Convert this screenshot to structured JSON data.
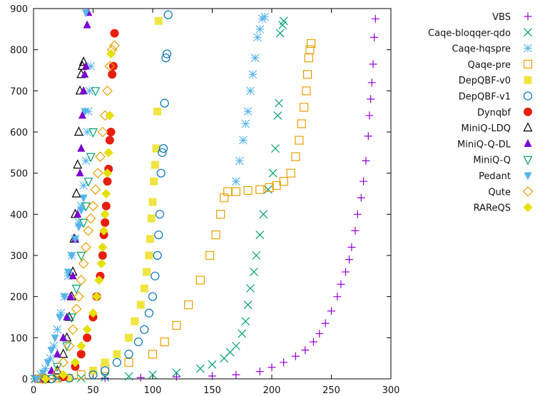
{
  "chart_data": {
    "type": "scatter",
    "title": "",
    "xlabel": "",
    "ylabel": "",
    "xlim": [
      0,
      300
    ],
    "ylim": [
      0,
      900
    ],
    "x_ticks": [
      0,
      50,
      100,
      150,
      200,
      250,
      300
    ],
    "y_ticks": [
      0,
      100,
      200,
      300,
      400,
      500,
      600,
      700,
      800,
      900
    ],
    "grid": false,
    "legend_position": "top-right",
    "series": [
      {
        "name": "VBS",
        "marker": "plus",
        "color": "#9400d3",
        "points": [
          [
            1,
            0
          ],
          [
            30,
            1
          ],
          [
            60,
            2
          ],
          [
            90,
            3
          ],
          [
            120,
            5
          ],
          [
            150,
            7
          ],
          [
            170,
            10
          ],
          [
            190,
            18
          ],
          [
            200,
            28
          ],
          [
            210,
            40
          ],
          [
            220,
            55
          ],
          [
            228,
            70
          ],
          [
            235,
            90
          ],
          [
            240,
            110
          ],
          [
            245,
            135
          ],
          [
            250,
            165
          ],
          [
            255,
            200
          ],
          [
            258,
            230
          ],
          [
            262,
            260
          ],
          [
            265,
            290
          ],
          [
            267,
            320
          ],
          [
            270,
            360
          ],
          [
            272,
            400
          ],
          [
            275,
            440
          ],
          [
            277,
            480
          ],
          [
            279,
            530
          ],
          [
            281,
            590
          ],
          [
            282,
            640
          ],
          [
            283,
            680
          ],
          [
            284,
            720
          ],
          [
            285,
            765
          ],
          [
            286,
            830
          ],
          [
            287,
            875
          ]
        ]
      },
      {
        "name": "Caqe-bloqqer-qdo",
        "marker": "x",
        "color": "#009e73",
        "points": [
          [
            1,
            0
          ],
          [
            20,
            1
          ],
          [
            40,
            2
          ],
          [
            60,
            4
          ],
          [
            80,
            6
          ],
          [
            100,
            10
          ],
          [
            120,
            15
          ],
          [
            140,
            25
          ],
          [
            150,
            35
          ],
          [
            160,
            50
          ],
          [
            165,
            65
          ],
          [
            170,
            80
          ],
          [
            175,
            110
          ],
          [
            178,
            140
          ],
          [
            180,
            180
          ],
          [
            182,
            220
          ],
          [
            185,
            260
          ],
          [
            187,
            300
          ],
          [
            190,
            350
          ],
          [
            193,
            400
          ],
          [
            197,
            460
          ],
          [
            201,
            500
          ],
          [
            203,
            560
          ],
          [
            205,
            640
          ],
          [
            206,
            670
          ],
          [
            207,
            840
          ],
          [
            209,
            860
          ],
          [
            210,
            870
          ]
        ]
      },
      {
        "name": "Caqe-hqspre",
        "marker": "star",
        "color": "#56b4e9",
        "points": [
          [
            2,
            0
          ],
          [
            6,
            10
          ],
          [
            10,
            25
          ],
          [
            14,
            50
          ],
          [
            17,
            80
          ],
          [
            20,
            120
          ],
          [
            23,
            160
          ],
          [
            26,
            200
          ],
          [
            29,
            250
          ],
          [
            32,
            300
          ],
          [
            35,
            340
          ],
          [
            38,
            380
          ],
          [
            40,
            420
          ],
          [
            42,
            470
          ],
          [
            44,
            530
          ],
          [
            45,
            600
          ],
          [
            46,
            650
          ],
          [
            47,
            700
          ],
          [
            48,
            760
          ],
          [
            170,
            480
          ],
          [
            173,
            530
          ],
          [
            176,
            580
          ],
          [
            178,
            620
          ],
          [
            180,
            650
          ],
          [
            182,
            700
          ],
          [
            184,
            740
          ],
          [
            186,
            780
          ],
          [
            188,
            830
          ],
          [
            190,
            850
          ],
          [
            192,
            875
          ],
          [
            194,
            880
          ]
        ]
      },
      {
        "name": "Qaqe-pre",
        "marker": "square-open",
        "color": "#e69f00",
        "points": [
          [
            5,
            0
          ],
          [
            20,
            2
          ],
          [
            40,
            10
          ],
          [
            60,
            25
          ],
          [
            80,
            40
          ],
          [
            100,
            60
          ],
          [
            110,
            90
          ],
          [
            120,
            130
          ],
          [
            130,
            180
          ],
          [
            140,
            240
          ],
          [
            148,
            300
          ],
          [
            153,
            350
          ],
          [
            157,
            400
          ],
          [
            160,
            440
          ],
          [
            163,
            455
          ],
          [
            170,
            455
          ],
          [
            180,
            458
          ],
          [
            190,
            460
          ],
          [
            198,
            465
          ],
          [
            204,
            470
          ],
          [
            210,
            480
          ],
          [
            216,
            500
          ],
          [
            220,
            540
          ],
          [
            223,
            580
          ],
          [
            225,
            620
          ],
          [
            227,
            660
          ],
          [
            229,
            700
          ],
          [
            230,
            740
          ],
          [
            231,
            780
          ],
          [
            232,
            800
          ],
          [
            233,
            815
          ]
        ]
      },
      {
        "name": "DepQBF-v0",
        "marker": "square-filled",
        "color": "#f0e442",
        "points": [
          [
            10,
            0
          ],
          [
            30,
            2
          ],
          [
            50,
            20
          ],
          [
            60,
            40
          ],
          [
            70,
            60
          ],
          [
            80,
            100
          ],
          [
            85,
            140
          ],
          [
            90,
            180
          ],
          [
            93,
            220
          ],
          [
            95,
            260
          ],
          [
            97,
            300
          ],
          [
            98,
            340
          ],
          [
            99,
            390
          ],
          [
            100,
            430
          ],
          [
            101,
            480
          ],
          [
            102,
            520
          ],
          [
            103,
            560
          ],
          [
            104,
            650
          ],
          [
            105,
            870
          ]
        ]
      },
      {
        "name": "DepQBF-v1",
        "marker": "circle-open",
        "color": "#0072b2",
        "points": [
          [
            15,
            0
          ],
          [
            30,
            2
          ],
          [
            50,
            10
          ],
          [
            60,
            20
          ],
          [
            70,
            40
          ],
          [
            80,
            60
          ],
          [
            88,
            90
          ],
          [
            93,
            120
          ],
          [
            97,
            160
          ],
          [
            100,
            200
          ],
          [
            102,
            250
          ],
          [
            104,
            300
          ],
          [
            105,
            350
          ],
          [
            106,
            400
          ],
          [
            107,
            500
          ],
          [
            108,
            550
          ],
          [
            109,
            560
          ],
          [
            110,
            670
          ],
          [
            111,
            780
          ],
          [
            112,
            790
          ],
          [
            113,
            885
          ]
        ]
      },
      {
        "name": "Dynqbf",
        "marker": "circle-filled",
        "color": "#e51e10",
        "points": [
          [
            10,
            0
          ],
          [
            25,
            5
          ],
          [
            35,
            30
          ],
          [
            40,
            60
          ],
          [
            45,
            100
          ],
          [
            50,
            150
          ],
          [
            53,
            200
          ],
          [
            56,
            250
          ],
          [
            58,
            300
          ],
          [
            59,
            350
          ],
          [
            60,
            380
          ],
          [
            61,
            420
          ],
          [
            62,
            480
          ],
          [
            63,
            510
          ],
          [
            64,
            580
          ],
          [
            65,
            600
          ],
          [
            66,
            740
          ],
          [
            67,
            760
          ],
          [
            68,
            840
          ]
        ]
      },
      {
        "name": "MiniQ-LDQ",
        "marker": "triangle-open",
        "color": "#000000",
        "points": [
          [
            10,
            0
          ],
          [
            20,
            20
          ],
          [
            25,
            60
          ],
          [
            28,
            100
          ],
          [
            30,
            150
          ],
          [
            32,
            200
          ],
          [
            33,
            260
          ],
          [
            34,
            340
          ],
          [
            35,
            400
          ],
          [
            36,
            450
          ],
          [
            37,
            520
          ],
          [
            38,
            600
          ],
          [
            39,
            700
          ],
          [
            40,
            740
          ],
          [
            41,
            760
          ],
          [
            42,
            770
          ]
        ]
      },
      {
        "name": "MiniQ-Q-DL",
        "marker": "triangle-filled",
        "color": "#7b00d0",
        "points": [
          [
            8,
            0
          ],
          [
            15,
            20
          ],
          [
            20,
            60
          ],
          [
            25,
            100
          ],
          [
            28,
            150
          ],
          [
            31,
            200
          ],
          [
            33,
            250
          ],
          [
            35,
            340
          ],
          [
            37,
            400
          ],
          [
            39,
            500
          ],
          [
            40,
            560
          ],
          [
            41,
            640
          ],
          [
            42,
            700
          ],
          [
            43,
            740
          ],
          [
            44,
            760
          ],
          [
            45,
            860
          ],
          [
            46,
            890
          ]
        ]
      },
      {
        "name": "MiniQ-Q",
        "marker": "triangle-down-open",
        "color": "#009e73",
        "points": [
          [
            10,
            0
          ],
          [
            20,
            30
          ],
          [
            28,
            80
          ],
          [
            32,
            150
          ],
          [
            36,
            220
          ],
          [
            40,
            300
          ],
          [
            42,
            380
          ],
          [
            44,
            420
          ],
          [
            46,
            480
          ],
          [
            48,
            540
          ],
          [
            50,
            600
          ],
          [
            52,
            700
          ]
        ]
      },
      {
        "name": "Pedant",
        "marker": "triangle-down-filled",
        "color": "#56b4e9",
        "points": [
          [
            3,
            0
          ],
          [
            8,
            15
          ],
          [
            12,
            40
          ],
          [
            15,
            70
          ],
          [
            18,
            100
          ],
          [
            22,
            150
          ],
          [
            26,
            200
          ],
          [
            29,
            260
          ],
          [
            32,
            300
          ],
          [
            35,
            340
          ],
          [
            38,
            370
          ],
          [
            40,
            410
          ],
          [
            42,
            440
          ],
          [
            43,
            650
          ],
          [
            44,
            890
          ]
        ]
      },
      {
        "name": "Qute",
        "marker": "diamond-open",
        "color": "#e69f00",
        "points": [
          [
            8,
            0
          ],
          [
            20,
            15
          ],
          [
            25,
            40
          ],
          [
            30,
            80
          ],
          [
            33,
            120
          ],
          [
            36,
            170
          ],
          [
            38,
            200
          ],
          [
            40,
            240
          ],
          [
            42,
            280
          ],
          [
            44,
            320
          ],
          [
            46,
            360
          ],
          [
            48,
            390
          ],
          [
            50,
            420
          ],
          [
            52,
            460
          ],
          [
            54,
            500
          ],
          [
            56,
            540
          ],
          [
            58,
            600
          ],
          [
            60,
            640
          ],
          [
            62,
            700
          ],
          [
            64,
            760
          ],
          [
            66,
            800
          ],
          [
            68,
            810
          ]
        ]
      },
      {
        "name": "RAReQS",
        "marker": "diamond-filled",
        "color": "#e4e000",
        "points": [
          [
            10,
            0
          ],
          [
            25,
            10
          ],
          [
            35,
            40
          ],
          [
            40,
            80
          ],
          [
            45,
            120
          ],
          [
            50,
            160
          ],
          [
            53,
            200
          ],
          [
            55,
            240
          ],
          [
            57,
            280
          ],
          [
            58,
            320
          ],
          [
            59,
            360
          ],
          [
            60,
            400
          ],
          [
            61,
            450
          ],
          [
            62,
            500
          ],
          [
            63,
            550
          ],
          [
            64,
            640
          ],
          [
            65,
            790
          ]
        ]
      }
    ]
  }
}
